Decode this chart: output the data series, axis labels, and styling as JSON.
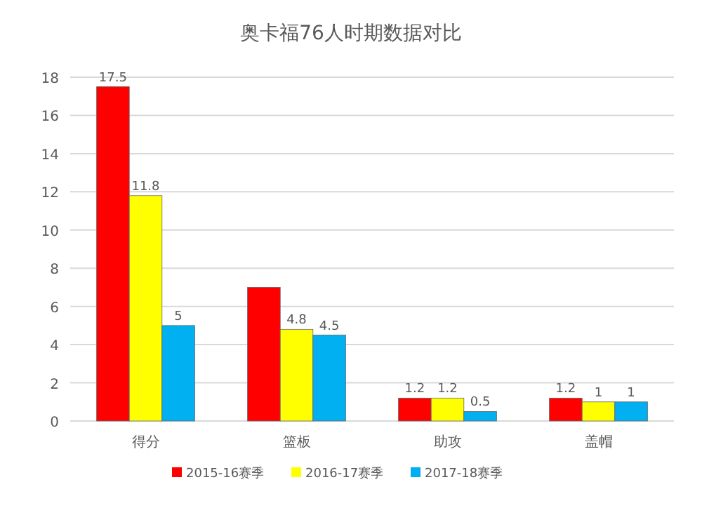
{
  "chart_data": {
    "type": "bar",
    "title": "奥卡福76人时期数据对比",
    "categories": [
      "得分",
      "篮板",
      "助攻",
      "盖帽"
    ],
    "series": [
      {
        "name": "2015-16赛季",
        "color": "#ff0000",
        "values": [
          17.5,
          7.0,
          1.2,
          1.2
        ],
        "value_labels": [
          "17.5",
          null,
          "1.2",
          "1.2"
        ]
      },
      {
        "name": "2016-17赛季",
        "color": "#ffff00",
        "values": [
          11.8,
          4.8,
          1.2,
          1
        ],
        "value_labels": [
          "11.8",
          "4.8",
          "1.2",
          "1"
        ]
      },
      {
        "name": "2017-18赛季",
        "color": "#00b0f0",
        "values": [
          5,
          4.5,
          0.5,
          1
        ],
        "value_labels": [
          "5",
          "4.5",
          "0.5",
          "1"
        ]
      }
    ],
    "ylim": [
      0,
      18
    ],
    "yticks": [
      0,
      2,
      4,
      6,
      8,
      10,
      12,
      14,
      16,
      18
    ],
    "grid": "y",
    "legend": "bottom"
  }
}
